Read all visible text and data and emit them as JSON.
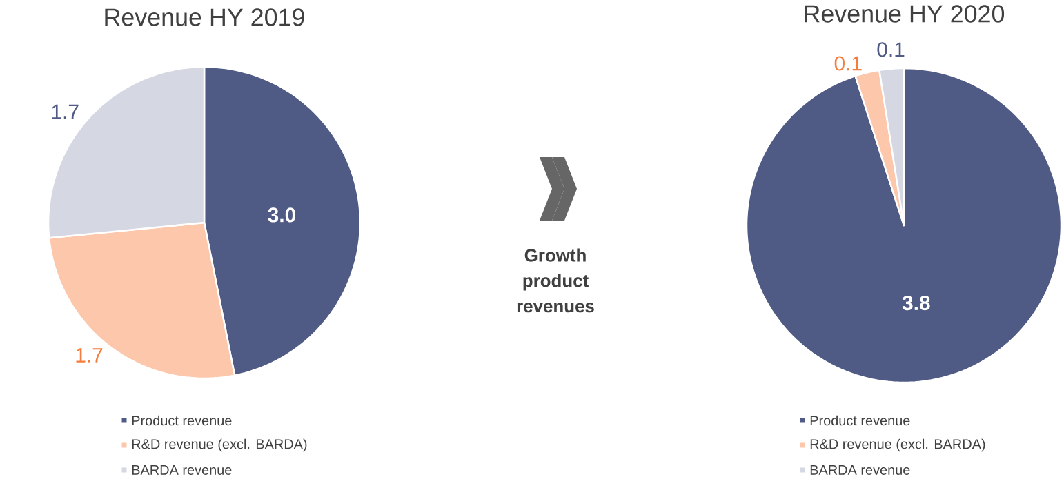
{
  "chart_data": [
    {
      "type": "pie",
      "title": "Revenue HY 2019",
      "categories": [
        "Product revenue",
        "R&D revenue (excl. BARDA)",
        "BARDA revenue"
      ],
      "values": [
        3.0,
        1.7,
        1.7
      ],
      "value_labels": [
        "3.0",
        "1.7",
        "1.7"
      ],
      "colors": [
        "#4f5b85",
        "#fdc7ac",
        "#d5d7e2"
      ],
      "legend": "bottom"
    },
    {
      "type": "other",
      "annotations": [
        "Growth product revenues"
      ]
    },
    {
      "type": "pie",
      "title": "Revenue HY 2020",
      "categories": [
        "Product revenue",
        "R&D revenue (excl. BARDA)",
        "BARDA revenue"
      ],
      "values": [
        3.8,
        0.1,
        0.1
      ],
      "colors": [
        "#4f5b85",
        "#fdc7ac",
        "#d5d7e2"
      ],
      "data_labels": true,
      "legend": "bottom"
    }
  ]
}
